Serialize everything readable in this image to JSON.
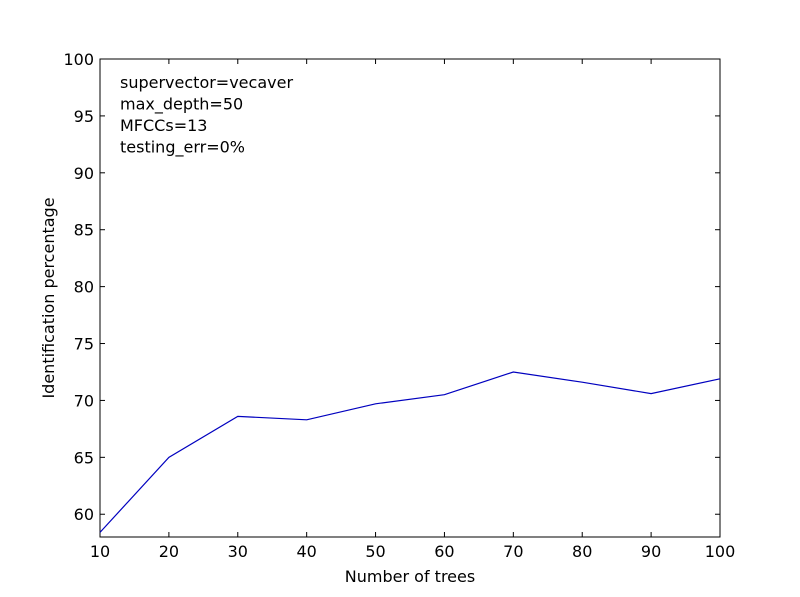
{
  "chart_data": {
    "type": "line",
    "title": "",
    "xlabel": "Number of trees",
    "ylabel": "Identification percentage",
    "xlim": [
      10,
      100
    ],
    "ylim": [
      58,
      100
    ],
    "xticks": [
      10,
      20,
      30,
      40,
      50,
      60,
      70,
      80,
      90,
      100
    ],
    "yticks": [
      60,
      65,
      70,
      75,
      80,
      85,
      90,
      95,
      100
    ],
    "grid": false,
    "annotations": [
      "supervector=vecaver",
      "max_depth=50",
      "MFCCs=13",
      "testing_err=0%"
    ],
    "series": [
      {
        "color": "#0000bf",
        "x": [
          10,
          20,
          30,
          40,
          50,
          60,
          70,
          80,
          90,
          100
        ],
        "y": [
          58.4,
          65.0,
          68.6,
          68.3,
          69.7,
          70.5,
          72.5,
          71.6,
          70.6,
          71.9
        ]
      }
    ]
  }
}
